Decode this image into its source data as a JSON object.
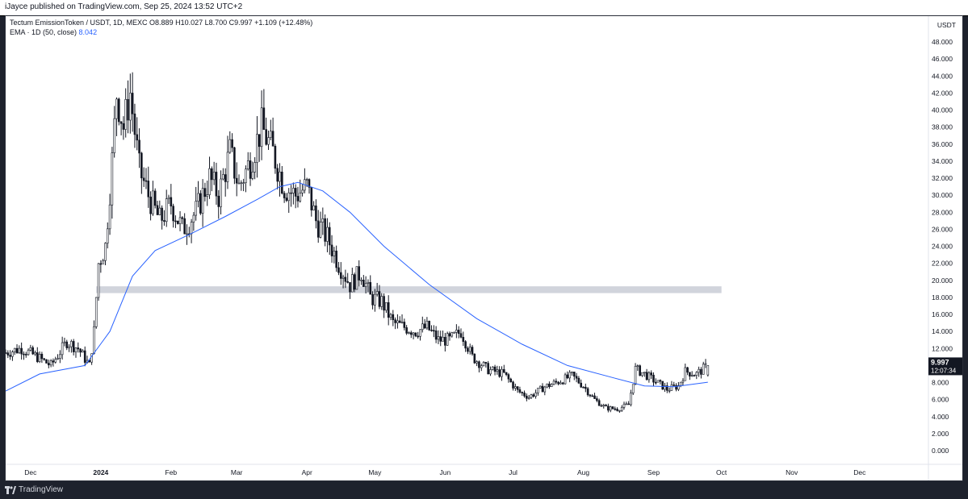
{
  "header": {
    "published": "iJayce published on TradingView.com, Sep 25, 2024 13:52 UTC+2"
  },
  "legend": {
    "line1": "Tectum EmissionToken / USDT, 1D, MEXC  O8.889  H10.027  L8.700  C9.997  +1.109 (+12.48%)",
    "ema_label": "EMA · 1D (50, close)",
    "ema_value": "8.042"
  },
  "price_axis": {
    "currency": "USDT",
    "ticks": [
      "48.000",
      "46.000",
      "44.000",
      "42.000",
      "40.000",
      "38.000",
      "36.000",
      "34.000",
      "32.000",
      "30.000",
      "28.000",
      "26.000",
      "24.000",
      "22.000",
      "20.000",
      "18.000",
      "16.000",
      "14.000",
      "12.000",
      "10.000",
      "8.000",
      "6.000",
      "4.000",
      "2.000",
      "0.000"
    ],
    "last_price": "9.997",
    "countdown": "12:07:34"
  },
  "time_axis": {
    "labels": [
      "Dec",
      "2024",
      "Feb",
      "Mar",
      "Apr",
      "May",
      "Jun",
      "Jul",
      "Aug",
      "Sep",
      "Oct",
      "Nov",
      "Dec"
    ]
  },
  "footer": {
    "brand": "TradingView"
  },
  "colors": {
    "up": "#131722",
    "down": "#131722",
    "ema": "#2962ff",
    "zone": "#d1d4dc",
    "background": "#ffffff"
  },
  "chart_data": {
    "type": "candlestick",
    "title": "Tectum EmissionToken / USDT, 1D, MEXC",
    "xlabel": "",
    "ylabel": "USDT",
    "ylim": [
      0,
      48
    ],
    "x_range": [
      "2023-11-20",
      "2024-12-31"
    ],
    "last": {
      "open": 8.889,
      "high": 10.027,
      "low": 8.7,
      "close": 9.997,
      "change": 1.109,
      "change_pct": 12.48
    },
    "zone": {
      "from": 18.5,
      "to": 19.3,
      "start": "2023-12-30",
      "end": "2024-10-01"
    },
    "close_path": [
      [
        "2023-11-20",
        11.5
      ],
      [
        "2023-11-27",
        12.0
      ],
      [
        "2023-12-04",
        11.0
      ],
      [
        "2023-12-10",
        10.0
      ],
      [
        "2023-12-17",
        12.8
      ],
      [
        "2023-12-22",
        12.0
      ],
      [
        "2023-12-27",
        10.0
      ],
      [
        "2023-12-29",
        14.0
      ],
      [
        "2023-12-31",
        22.0
      ],
      [
        "2024-01-03",
        24.0
      ],
      [
        "2024-01-06",
        34.0
      ],
      [
        "2024-01-08",
        42.0
      ],
      [
        "2024-01-11",
        38.0
      ],
      [
        "2024-01-14",
        42.0
      ],
      [
        "2024-01-18",
        33.0
      ],
      [
        "2024-01-22",
        30.0
      ],
      [
        "2024-01-27",
        27.0
      ],
      [
        "2024-02-01",
        29.0
      ],
      [
        "2024-02-06",
        26.0
      ],
      [
        "2024-02-12",
        28.0
      ],
      [
        "2024-02-18",
        32.0
      ],
      [
        "2024-02-22",
        30.0
      ],
      [
        "2024-02-27",
        35.0
      ],
      [
        "2024-03-02",
        31.0
      ],
      [
        "2024-03-07",
        34.0
      ],
      [
        "2024-03-12",
        38.0
      ],
      [
        "2024-03-17",
        35.0
      ],
      [
        "2024-03-22",
        31.0
      ],
      [
        "2024-03-27",
        30.0
      ],
      [
        "2024-04-01",
        31.0
      ],
      [
        "2024-04-05",
        27.0
      ],
      [
        "2024-04-10",
        25.0
      ],
      [
        "2024-04-15",
        22.0
      ],
      [
        "2024-04-20",
        19.5
      ],
      [
        "2024-04-25",
        21.0
      ],
      [
        "2024-04-29",
        18.0
      ],
      [
        "2024-05-04",
        17.5
      ],
      [
        "2024-05-09",
        15.0
      ],
      [
        "2024-05-14",
        14.5
      ],
      [
        "2024-05-19",
        14.0
      ],
      [
        "2024-05-24",
        14.5
      ],
      [
        "2024-05-29",
        13.0
      ],
      [
        "2024-06-03",
        13.0
      ],
      [
        "2024-06-08",
        14.0
      ],
      [
        "2024-06-13",
        11.0
      ],
      [
        "2024-06-20",
        9.5
      ],
      [
        "2024-06-27",
        9.0
      ],
      [
        "2024-07-03",
        7.0
      ],
      [
        "2024-07-08",
        6.3
      ],
      [
        "2024-07-15",
        7.5
      ],
      [
        "2024-07-22",
        8.2
      ],
      [
        "2024-07-27",
        8.8
      ],
      [
        "2024-08-01",
        7.6
      ],
      [
        "2024-08-06",
        6.0
      ],
      [
        "2024-08-11",
        5.0
      ],
      [
        "2024-08-16",
        4.9
      ],
      [
        "2024-08-21",
        5.4
      ],
      [
        "2024-08-24",
        9.6
      ],
      [
        "2024-08-28",
        9.0
      ],
      [
        "2024-09-02",
        8.1
      ],
      [
        "2024-09-07",
        7.2
      ],
      [
        "2024-09-12",
        7.6
      ],
      [
        "2024-09-15",
        9.3
      ],
      [
        "2024-09-20",
        9.0
      ],
      [
        "2024-09-25",
        9.997
      ]
    ],
    "ema50": [
      [
        "2023-11-20",
        7.0
      ],
      [
        "2023-12-05",
        9.0
      ],
      [
        "2023-12-25",
        10.0
      ],
      [
        "2024-01-05",
        14.0
      ],
      [
        "2024-01-15",
        20.5
      ],
      [
        "2024-01-25",
        23.5
      ],
      [
        "2024-02-10",
        25.5
      ],
      [
        "2024-02-25",
        27.5
      ],
      [
        "2024-03-10",
        29.5
      ],
      [
        "2024-03-20",
        31.0
      ],
      [
        "2024-03-28",
        31.5
      ],
      [
        "2024-04-08",
        30.5
      ],
      [
        "2024-04-20",
        28.0
      ],
      [
        "2024-05-05",
        24.0
      ],
      [
        "2024-05-25",
        19.5
      ],
      [
        "2024-06-15",
        15.5
      ],
      [
        "2024-07-05",
        12.5
      ],
      [
        "2024-07-25",
        10.0
      ],
      [
        "2024-08-15",
        8.5
      ],
      [
        "2024-08-28",
        7.6
      ],
      [
        "2024-09-10",
        7.5
      ],
      [
        "2024-09-25",
        8.042
      ]
    ]
  }
}
